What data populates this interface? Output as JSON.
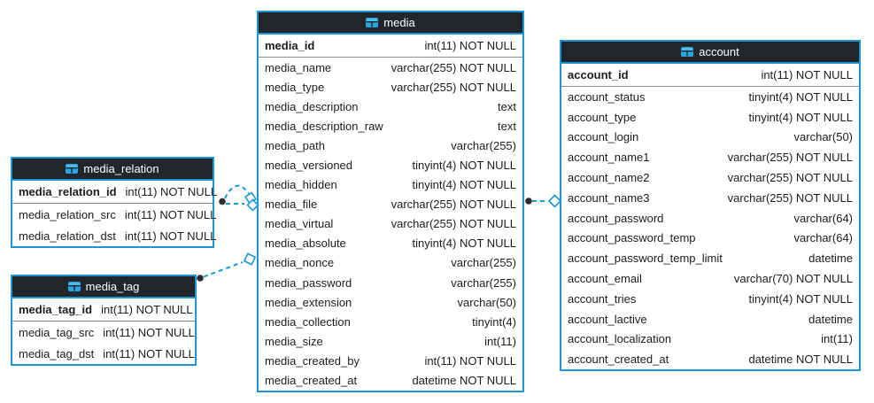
{
  "colors": {
    "accent": "#1a97d4",
    "header_bg": "#22262a",
    "header_text": "#ffffff",
    "row_text": "#1c1c1c",
    "pk_divider": "#8c8c8c",
    "connector_dot": "#2d2d2d",
    "diamond_fill": "#ffffff"
  },
  "tables": [
    {
      "id": "media_relation",
      "title": "media_relation",
      "icon": "table-icon",
      "pk": {
        "name": "media_relation_id",
        "type": "int(11) NOT NULL"
      },
      "columns": [
        {
          "name": "media_relation_src",
          "type": "int(11) NOT NULL"
        },
        {
          "name": "media_relation_dst",
          "type": "int(11) NOT NULL"
        }
      ]
    },
    {
      "id": "media_tag",
      "title": "media_tag",
      "icon": "table-icon",
      "pk": {
        "name": "media_tag_id",
        "type": "int(11) NOT NULL"
      },
      "columns": [
        {
          "name": "media_tag_src",
          "type": "int(11) NOT NULL"
        },
        {
          "name": "media_tag_dst",
          "type": "int(11) NOT NULL"
        }
      ]
    },
    {
      "id": "media",
      "title": "media",
      "icon": "table-icon",
      "pk": {
        "name": "media_id",
        "type": "int(11) NOT NULL"
      },
      "columns": [
        {
          "name": "media_name",
          "type": "varchar(255) NOT NULL"
        },
        {
          "name": "media_type",
          "type": "varchar(255) NOT NULL"
        },
        {
          "name": "media_description",
          "type": "text"
        },
        {
          "name": "media_description_raw",
          "type": "text"
        },
        {
          "name": "media_path",
          "type": "varchar(255)"
        },
        {
          "name": "media_versioned",
          "type": "tinyint(4) NOT NULL"
        },
        {
          "name": "media_hidden",
          "type": "tinyint(4) NOT NULL"
        },
        {
          "name": "media_file",
          "type": "varchar(255) NOT NULL"
        },
        {
          "name": "media_virtual",
          "type": "varchar(255) NOT NULL"
        },
        {
          "name": "media_absolute",
          "type": "tinyint(4) NOT NULL"
        },
        {
          "name": "media_nonce",
          "type": "varchar(255)"
        },
        {
          "name": "media_password",
          "type": "varchar(255)"
        },
        {
          "name": "media_extension",
          "type": "varchar(50)"
        },
        {
          "name": "media_collection",
          "type": "tinyint(4)"
        },
        {
          "name": "media_size",
          "type": "int(11)"
        },
        {
          "name": "media_created_by",
          "type": "int(11) NOT NULL"
        },
        {
          "name": "media_created_at",
          "type": "datetime NOT NULL"
        }
      ]
    },
    {
      "id": "account",
      "title": "account",
      "icon": "table-icon",
      "pk": {
        "name": "account_id",
        "type": "int(11) NOT NULL"
      },
      "columns": [
        {
          "name": "account_status",
          "type": "tinyint(4) NOT NULL"
        },
        {
          "name": "account_type",
          "type": "tinyint(4) NOT NULL"
        },
        {
          "name": "account_login",
          "type": "varchar(50)"
        },
        {
          "name": "account_name1",
          "type": "varchar(255) NOT NULL"
        },
        {
          "name": "account_name2",
          "type": "varchar(255) NOT NULL"
        },
        {
          "name": "account_name3",
          "type": "varchar(255) NOT NULL"
        },
        {
          "name": "account_password",
          "type": "varchar(64)"
        },
        {
          "name": "account_password_temp",
          "type": "varchar(64)"
        },
        {
          "name": "account_password_temp_limit",
          "type": "datetime"
        },
        {
          "name": "account_email",
          "type": "varchar(70) NOT NULL"
        },
        {
          "name": "account_tries",
          "type": "tinyint(4) NOT NULL"
        },
        {
          "name": "account_lactive",
          "type": "datetime"
        },
        {
          "name": "account_localization",
          "type": "int(11)"
        },
        {
          "name": "account_created_at",
          "type": "datetime NOT NULL"
        }
      ]
    }
  ],
  "connectors": [
    {
      "from": "media_relation",
      "to": "media",
      "style": "dashed",
      "lines": 2
    },
    {
      "from": "media_tag",
      "to": "media",
      "style": "dashed",
      "lines": 1
    },
    {
      "from": "media",
      "to": "account",
      "style": "dashed",
      "lines": 1
    }
  ]
}
